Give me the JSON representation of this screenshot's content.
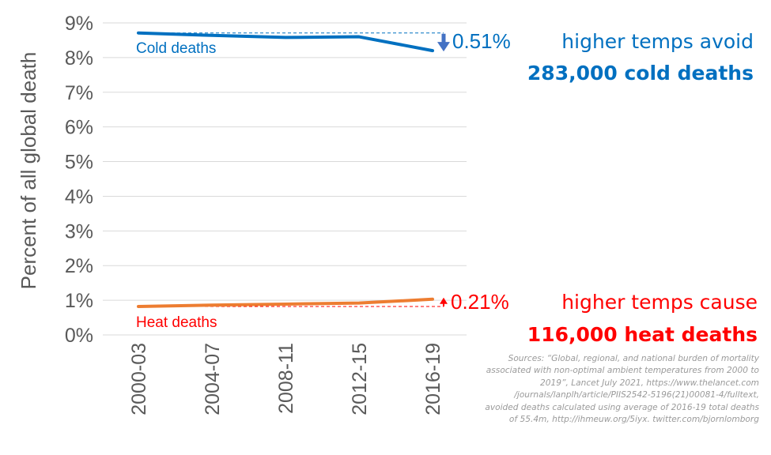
{
  "chart_data": {
    "type": "line",
    "title": "",
    "ylabel": "Percent of all global death",
    "xlabel": "",
    "ylim": [
      0,
      9
    ],
    "yticks": [
      "0%",
      "1%",
      "2%",
      "3%",
      "4%",
      "5%",
      "6%",
      "7%",
      "8%",
      "9%"
    ],
    "categories": [
      "2000-03",
      "2004-07",
      "2008-11",
      "2012-15",
      "2016-19"
    ],
    "grid": true,
    "series": [
      {
        "name": "Cold deaths",
        "color": "#0070C0",
        "values": [
          8.71,
          8.64,
          8.58,
          8.6,
          8.2
        ]
      },
      {
        "name": "Heat deaths",
        "color": "#ED7D31",
        "values": [
          0.82,
          0.86,
          0.89,
          0.92,
          1.03
        ]
      }
    ],
    "annotations": {
      "cold_change": "0.51%",
      "heat_change": "0.21%",
      "cold_callout_line1": "higher temps avoid",
      "cold_callout_line2": "283,000 cold deaths",
      "heat_callout_line1": "higher temps cause",
      "heat_callout_line2": "116,000 heat deaths",
      "cold_color": "#0070C0",
      "heat_color": "#FF0000"
    }
  },
  "sources": [
    "Sources: “Global, regional, and national burden of mortality",
    "associated with non-optimal ambient temperatures from 2000 to",
    "2019”, Lancet July 2021, https://www.thelancet.com",
    "/journals/lanplh/article/PIIS2542-5196(21)00081-4/fulltext,",
    "avoided deaths calculated using average of 2016-19 total deaths",
    "of 55.4m, http://ihmeuw.org/5iyx. twitter.com/bjornlomborg"
  ]
}
